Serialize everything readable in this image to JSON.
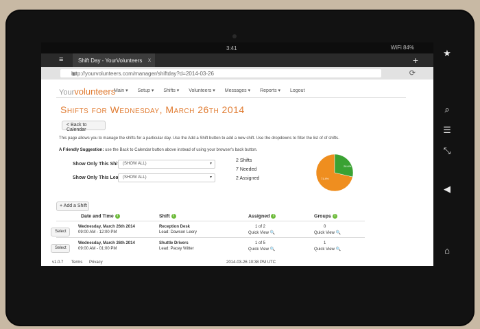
{
  "status": {
    "time": "3:41",
    "sys": "WiFi 84%"
  },
  "browser": {
    "tab_title": "Shift Day - YourVolunteers",
    "tab_close": "x",
    "new_tab": "+",
    "url": "http://yourvolunteers.com/manager/shiftday?d=2014-03-26"
  },
  "nav": {
    "logo_prefix": "Your",
    "logo_main": "volunteers",
    "items": [
      "Main ▾",
      "Setup ▾",
      "Shifts ▾",
      "Volunteers ▾",
      "Messages ▾",
      "Reports ▾",
      "Logout"
    ]
  },
  "page": {
    "title": "Shifts for Wednesday, March 26th 2014",
    "back_label": "< Back to Calendar",
    "intro": "This page allows you to manage the shifts for a particular day. Use the Add a Shift button to add a new shift. Use the dropdowns to filter the list of of shifts.",
    "suggest_bold": "A Friendly Suggestion:",
    "suggest_text": " use the Back to Calendar button above instead of using your browser's back button.",
    "filter_shift_label": "Show Only This Shift",
    "filter_shift_value": "(SHOW ALL)",
    "filter_lead_label": "Show Only This Lead",
    "filter_lead_value": "(SHOW ALL)",
    "stat_shifts": "2 Shifts",
    "stat_needed": "7 Needed",
    "stat_assigned": "2 Assigned",
    "pie": {
      "green_label": "28.6%",
      "orange_label": "71.4%",
      "green_fraction": 0.286,
      "green_color": "#3aa233",
      "orange_color": "#ef8e1f"
    },
    "add_label": "+ Add a Shift"
  },
  "table": {
    "headers": {
      "date": "Date and Time",
      "shift": "Shift",
      "assigned": "Assigned",
      "groups": "Groups"
    },
    "info_glyph": "i",
    "select_label": "Select",
    "rows": [
      {
        "date": "Wednesday, March 26th 2014",
        "time": "09:00 AM - 12:00 PM",
        "shift": "Reception Desk",
        "lead": "Lead: Dawson Leery",
        "assigned": "1 of 2",
        "assigned_link": "Quick View 🔍",
        "groups": "0",
        "groups_link": "Quick View 🔍"
      },
      {
        "date": "Wednesday, March 26th 2014",
        "time": "09:00 AM - 01:00 PM",
        "shift": "Shuttle Drivers",
        "lead": "Lead: Pacey Witter",
        "assigned": "1 of 5",
        "assigned_link": "Quick View 🔍",
        "groups": "1",
        "groups_link": "Quick View 🔍"
      }
    ]
  },
  "footer": {
    "version": "v1.0.7",
    "terms": "Terms",
    "privacy": "Privacy",
    "timestamp": "2014-03-26 10:38 PM UTC"
  },
  "device_icons": [
    "star-icon",
    "search-icon",
    "reader-icon",
    "fullscreen-icon",
    "back-icon",
    "home-icon"
  ]
}
